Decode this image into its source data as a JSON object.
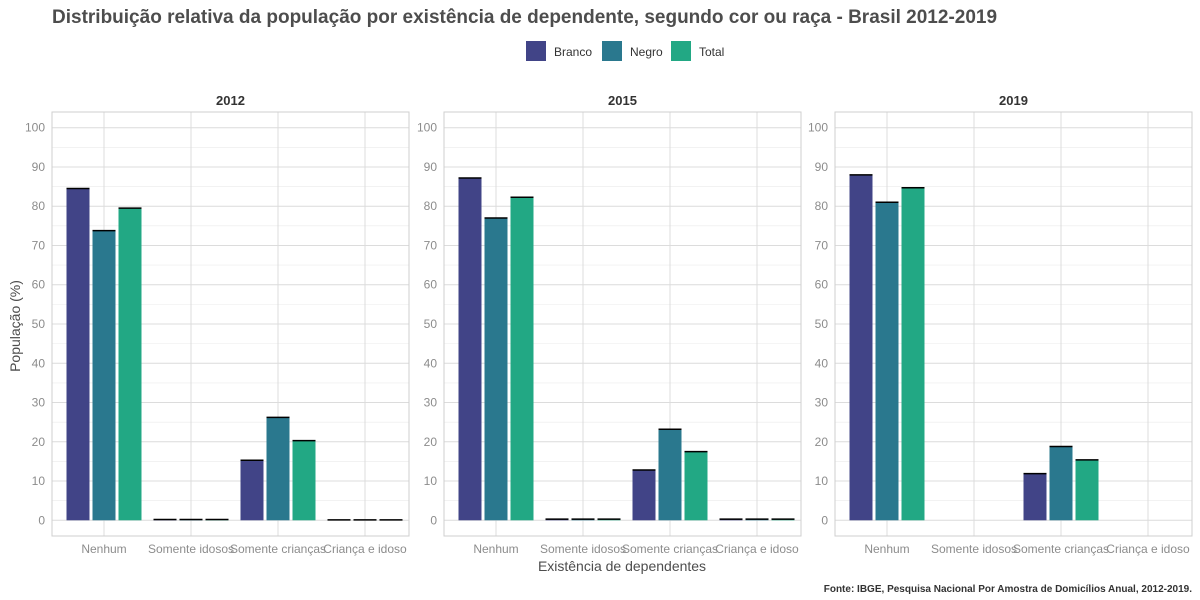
{
  "chart_data": {
    "type": "bar",
    "title": "Distribuição relativa da população por existência de dependente, segundo cor ou raça - Brasil 2012-2019",
    "xlabel": "Existência de dependentes",
    "ylabel": "População (%)",
    "caption": "Fonte: IBGE, Pesquisa Nacional Por Amostra de Domicílios Anual, 2012-2019.",
    "ylim": [
      -4,
      104
    ],
    "yticks": [
      0,
      10,
      20,
      30,
      40,
      50,
      60,
      70,
      80,
      90,
      100
    ],
    "categories": [
      "Nenhum",
      "Somente idosos",
      "Somente crianças",
      "Criança e idoso"
    ],
    "grid": true,
    "legend_position": "top",
    "legend": [
      {
        "name": "Branco",
        "color": "#414487"
      },
      {
        "name": "Negro",
        "color": "#2A788E"
      },
      {
        "name": "Total",
        "color": "#22A884"
      }
    ],
    "panels": [
      {
        "label": "2012",
        "series": [
          {
            "name": "Branco",
            "values": [
              84.5,
              0.2,
              15.3,
              0.1
            ]
          },
          {
            "name": "Negro",
            "values": [
              73.8,
              0.2,
              26.2,
              0.1
            ]
          },
          {
            "name": "Total",
            "values": [
              79.5,
              0.2,
              20.3,
              0.1
            ]
          }
        ]
      },
      {
        "label": "2015",
        "series": [
          {
            "name": "Branco",
            "values": [
              87.2,
              0.3,
              12.8,
              0.3
            ]
          },
          {
            "name": "Negro",
            "values": [
              77.0,
              0.3,
              23.2,
              0.3
            ]
          },
          {
            "name": "Total",
            "values": [
              82.3,
              0.3,
              17.5,
              0.3
            ]
          }
        ]
      },
      {
        "label": "2019",
        "series": [
          {
            "name": "Branco",
            "values": [
              88.0,
              0,
              11.9,
              0
            ]
          },
          {
            "name": "Negro",
            "values": [
              81.0,
              0,
              18.8,
              0
            ]
          },
          {
            "name": "Total",
            "values": [
              84.7,
              0,
              15.4,
              0
            ]
          }
        ]
      }
    ]
  }
}
